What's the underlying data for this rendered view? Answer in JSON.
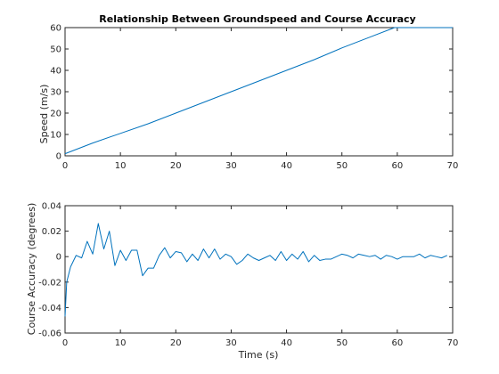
{
  "chart_data": [
    {
      "type": "line",
      "title": "Relationship Between Groundspeed and Course Accuracy",
      "xlabel": "",
      "ylabel": "Speed (m/s)",
      "xlim": [
        0,
        70
      ],
      "ylim": [
        0,
        60
      ],
      "xticks": [
        0,
        10,
        20,
        30,
        40,
        50,
        60,
        70
      ],
      "yticks": [
        0,
        10,
        20,
        30,
        40,
        50,
        60
      ],
      "grid": false,
      "color": "#0072BD",
      "series": [
        {
          "x": [
            0,
            5,
            10,
            15,
            20,
            25,
            30,
            35,
            40,
            45,
            50,
            55,
            59.5,
            60,
            65,
            70
          ],
          "y": [
            1,
            6,
            10.5,
            15,
            20,
            25,
            30,
            35,
            40,
            45,
            50.5,
            55.5,
            60,
            60,
            60,
            60
          ]
        }
      ]
    },
    {
      "type": "line",
      "title": "",
      "xlabel": "Time (s)",
      "ylabel": "Course Accuracy (degrees)",
      "xlim": [
        0,
        70
      ],
      "ylim": [
        -0.06,
        0.04
      ],
      "xticks": [
        0,
        10,
        20,
        30,
        40,
        50,
        60,
        70
      ],
      "yticks": [
        -0.06,
        -0.04,
        -0.02,
        0,
        0.02,
        0.04
      ],
      "grid": false,
      "color": "#0072BD",
      "series": [
        {
          "x": [
            0,
            0.3,
            1,
            2,
            3,
            4,
            5,
            6,
            7,
            8,
            9,
            10,
            11,
            12,
            13,
            14,
            15,
            16,
            17,
            18,
            19,
            20,
            21,
            22,
            23,
            24,
            25,
            26,
            27,
            28,
            29,
            30,
            31,
            32,
            33,
            34,
            35,
            36,
            37,
            38,
            39,
            40,
            41,
            42,
            43,
            44,
            45,
            46,
            47,
            48,
            49,
            50,
            51,
            52,
            53,
            54,
            55,
            56,
            57,
            58,
            59,
            60,
            61,
            62,
            63,
            64,
            65,
            66,
            67,
            68,
            69
          ],
          "y": [
            -0.047,
            -0.02,
            -0.008,
            0.001,
            -0.001,
            0.012,
            0.002,
            0.026,
            0.006,
            0.02,
            -0.007,
            0.005,
            -0.003,
            0.005,
            0.005,
            -0.015,
            -0.009,
            -0.009,
            0.001,
            0.007,
            -0.001,
            0.004,
            0.003,
            -0.004,
            0.002,
            -0.003,
            0.006,
            -0.001,
            0.006,
            -0.002,
            0.002,
            0.0,
            -0.006,
            -0.003,
            0.002,
            -0.001,
            -0.003,
            -0.001,
            0.001,
            -0.003,
            0.004,
            -0.003,
            0.002,
            -0.002,
            0.004,
            -0.004,
            0.001,
            -0.003,
            -0.002,
            -0.002,
            0.0,
            0.002,
            0.001,
            -0.001,
            0.002,
            0.001,
            0.0,
            0.001,
            -0.002,
            0.001,
            0.0,
            -0.002,
            0.0,
            0.0,
            0.0,
            0.002,
            -0.001,
            0.001,
            0.0,
            -0.001,
            0.001
          ]
        }
      ]
    }
  ]
}
